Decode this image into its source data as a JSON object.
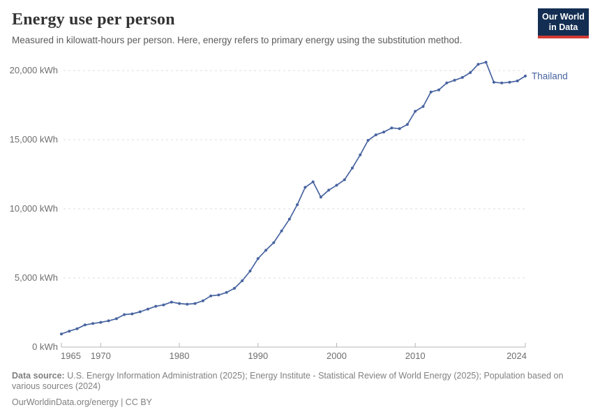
{
  "header": {
    "title": "Energy use per person",
    "subtitle": "Measured in kilowatt-hours per person. Here, energy refers to primary energy using the substitution method.",
    "logo": {
      "line1": "Our World",
      "line2": "in Data",
      "bg_color": "#132e52",
      "accent_color": "#d03a34"
    }
  },
  "chart_data": {
    "type": "line",
    "title": "Energy use per person",
    "unit": "kWh",
    "xlabel": "",
    "ylabel": "kilowatt-hours per person",
    "x_range": [
      1965,
      2024
    ],
    "y_range": [
      0,
      20000
    ],
    "grid": "horizontal-dashed",
    "legend_position": "end-of-line",
    "grid_color": "#dcdcdc",
    "axis_color": "#b5b5b5",
    "y_ticks": [
      {
        "value": 0,
        "label": "0 kWh"
      },
      {
        "value": 5000,
        "label": "5,000 kWh"
      },
      {
        "value": 10000,
        "label": "10,000 kWh"
      },
      {
        "value": 15000,
        "label": "15,000 kWh"
      },
      {
        "value": 20000,
        "label": "20,000 kWh"
      }
    ],
    "x_ticks": [
      {
        "value": 1965,
        "label": "1965"
      },
      {
        "value": 1970,
        "label": "1970"
      },
      {
        "value": 1980,
        "label": "1980"
      },
      {
        "value": 1990,
        "label": "1990"
      },
      {
        "value": 2000,
        "label": "2000"
      },
      {
        "value": 2010,
        "label": "2010"
      },
      {
        "value": 2024,
        "label": "2024"
      }
    ],
    "series": [
      {
        "name": "Thailand",
        "color": "#4864a0",
        "x": [
          1965,
          1966,
          1967,
          1968,
          1969,
          1970,
          1971,
          1972,
          1973,
          1974,
          1975,
          1976,
          1977,
          1978,
          1979,
          1980,
          1981,
          1982,
          1983,
          1984,
          1985,
          1986,
          1987,
          1988,
          1989,
          1990,
          1991,
          1992,
          1993,
          1994,
          1995,
          1996,
          1997,
          1998,
          1999,
          2000,
          2001,
          2002,
          2003,
          2004,
          2005,
          2006,
          2007,
          2008,
          2009,
          2010,
          2011,
          2012,
          2013,
          2014,
          2015,
          2016,
          2017,
          2018,
          2019,
          2020,
          2021,
          2022,
          2023,
          2024
        ],
        "values": [
          950,
          1150,
          1330,
          1600,
          1700,
          1790,
          1900,
          2050,
          2350,
          2400,
          2550,
          2750,
          2950,
          3050,
          3250,
          3150,
          3100,
          3150,
          3350,
          3700,
          3770,
          3950,
          4250,
          4800,
          5500,
          6400,
          7000,
          7550,
          8400,
          9250,
          10300,
          11550,
          11950,
          10850,
          11350,
          11700,
          12100,
          12950,
          13900,
          14950,
          15350,
          15550,
          15850,
          15800,
          16100,
          17050,
          17400,
          18450,
          18600,
          19100,
          19300,
          19500,
          19850,
          20450,
          20600,
          19150,
          19100,
          19150,
          19250,
          19600
        ]
      }
    ]
  },
  "footer": {
    "source_label": "Data source:",
    "source_text": " U.S. Energy Information Administration (2025); Energy Institute - Statistical Review of World Energy (2025); Population based on various sources (2024)",
    "link_text": "OurWorldinData.org/energy | CC BY"
  }
}
